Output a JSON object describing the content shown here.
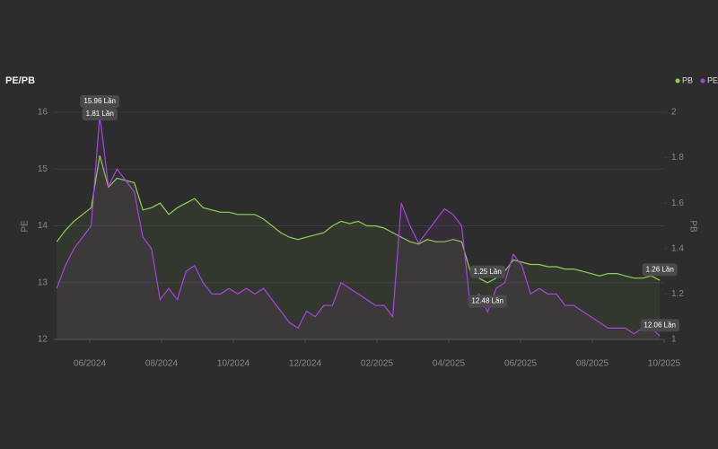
{
  "chart_data": {
    "type": "line",
    "title": "PE/PB",
    "x": [
      2024.34,
      2024.36,
      2024.38,
      2024.4,
      2024.42,
      2024.44,
      2024.46,
      2024.48,
      2024.5,
      2024.52,
      2024.54,
      2024.56,
      2024.58,
      2024.6,
      2024.62,
      2024.64,
      2024.66,
      2024.68,
      2024.7,
      2024.72,
      2024.74,
      2024.76,
      2024.78,
      2024.8,
      2024.82,
      2024.84,
      2024.86,
      2024.88,
      2024.9,
      2024.92,
      2024.94,
      2024.96,
      2024.98,
      2025.0,
      2025.02,
      2025.04,
      2025.06,
      2025.08,
      2025.1,
      2025.12,
      2025.14,
      2025.16,
      2025.18,
      2025.2,
      2025.22,
      2025.24,
      2025.26,
      2025.28,
      2025.3,
      2025.32,
      2025.34,
      2025.36,
      2025.38,
      2025.4,
      2025.42,
      2025.44,
      2025.46,
      2025.48,
      2025.5,
      2025.52,
      2025.54,
      2025.56,
      2025.58,
      2025.6,
      2025.62,
      2025.64,
      2025.66,
      2025.68,
      2025.7,
      2025.72,
      2025.74
    ],
    "series": [
      {
        "name": "PB",
        "color": "#8fd14f",
        "axis": "y2",
        "values": [
          1.43,
          1.48,
          1.52,
          1.55,
          1.58,
          1.81,
          1.67,
          1.71,
          1.7,
          1.69,
          1.57,
          1.58,
          1.6,
          1.55,
          1.58,
          1.6,
          1.62,
          1.58,
          1.57,
          1.56,
          1.56,
          1.55,
          1.55,
          1.55,
          1.53,
          1.5,
          1.47,
          1.45,
          1.44,
          1.45,
          1.46,
          1.47,
          1.5,
          1.52,
          1.51,
          1.52,
          1.5,
          1.5,
          1.49,
          1.47,
          1.45,
          1.43,
          1.42,
          1.44,
          1.43,
          1.43,
          1.44,
          1.43,
          1.3,
          1.27,
          1.25,
          1.27,
          1.3,
          1.35,
          1.34,
          1.33,
          1.33,
          1.32,
          1.32,
          1.31,
          1.31,
          1.3,
          1.29,
          1.28,
          1.29,
          1.29,
          1.28,
          1.27,
          1.27,
          1.28,
          1.26
        ],
        "value_labels": [
          null,
          null,
          null,
          null,
          null,
          "1.81 Lần",
          null,
          null,
          null,
          null,
          null,
          null,
          null,
          null,
          null,
          null,
          null,
          null,
          null,
          null,
          null,
          null,
          null,
          null,
          null,
          null,
          null,
          null,
          null,
          null,
          null,
          null,
          null,
          null,
          null,
          null,
          null,
          null,
          null,
          null,
          null,
          null,
          null,
          null,
          null,
          null,
          null,
          null,
          null,
          null,
          "1.25 Lần",
          null,
          null,
          null,
          null,
          null,
          null,
          null,
          null,
          null,
          null,
          null,
          null,
          null,
          null,
          null,
          null,
          null,
          null,
          null,
          "1.26 Lần"
        ]
      },
      {
        "name": "PE",
        "color": "#a646d9",
        "values": [
          12.9,
          13.3,
          13.6,
          13.8,
          14.0,
          15.96,
          14.7,
          15.0,
          14.8,
          14.6,
          13.8,
          13.6,
          12.7,
          12.9,
          12.7,
          13.2,
          13.3,
          13.0,
          12.8,
          12.8,
          12.9,
          12.8,
          12.9,
          12.8,
          12.9,
          12.7,
          12.5,
          12.3,
          12.2,
          12.5,
          12.4,
          12.6,
          12.6,
          13.0,
          12.9,
          12.8,
          12.7,
          12.6,
          12.6,
          12.4,
          14.4,
          14.0,
          13.7,
          13.9,
          14.1,
          14.3,
          14.2,
          14.0,
          12.6,
          12.8,
          12.48,
          12.9,
          13.0,
          13.5,
          13.3,
          12.8,
          12.9,
          12.8,
          12.8,
          12.6,
          12.6,
          12.5,
          12.4,
          12.3,
          12.2,
          12.2,
          12.2,
          12.1,
          12.2,
          12.2,
          12.06
        ],
        "value_labels": [
          null,
          null,
          null,
          null,
          null,
          "15.96 Lần",
          null,
          null,
          null,
          null,
          null,
          null,
          null,
          null,
          null,
          null,
          null,
          null,
          null,
          null,
          null,
          null,
          null,
          null,
          null,
          null,
          null,
          null,
          null,
          null,
          null,
          null,
          null,
          null,
          null,
          null,
          null,
          null,
          null,
          null,
          null,
          null,
          null,
          null,
          null,
          null,
          null,
          null,
          null,
          null,
          "12.48 Lần",
          null,
          null,
          null,
          null,
          null,
          null,
          null,
          null,
          null,
          null,
          null,
          null,
          null,
          null,
          null,
          null,
          null,
          null,
          null,
          "12.06 Lần"
        ]
      }
    ],
    "xlim": [
      2024.3333,
      2025.75
    ],
    "xticks": [
      {
        "value": 2024.4167,
        "label": "06/2024"
      },
      {
        "value": 2024.5833,
        "label": "08/2024"
      },
      {
        "value": 2024.75,
        "label": "10/2024"
      },
      {
        "value": 2024.9167,
        "label": "12/2024"
      },
      {
        "value": 2025.0833,
        "label": "02/2025"
      },
      {
        "value": 2025.25,
        "label": "04/2025"
      },
      {
        "value": 2025.4167,
        "label": "06/2025"
      },
      {
        "value": 2025.5833,
        "label": "08/2025"
      },
      {
        "value": 2025.75,
        "label": "10/2025"
      }
    ],
    "ylabel": "PE",
    "ylim": [
      12,
      16
    ],
    "yticks": [
      12,
      13,
      14,
      15,
      16
    ],
    "y2label": "PB",
    "y2lim": [
      1,
      2
    ],
    "y2ticks": [
      1,
      1.2,
      1.4,
      1.6,
      1.8,
      2
    ],
    "grid": true,
    "legend": "top-right"
  }
}
